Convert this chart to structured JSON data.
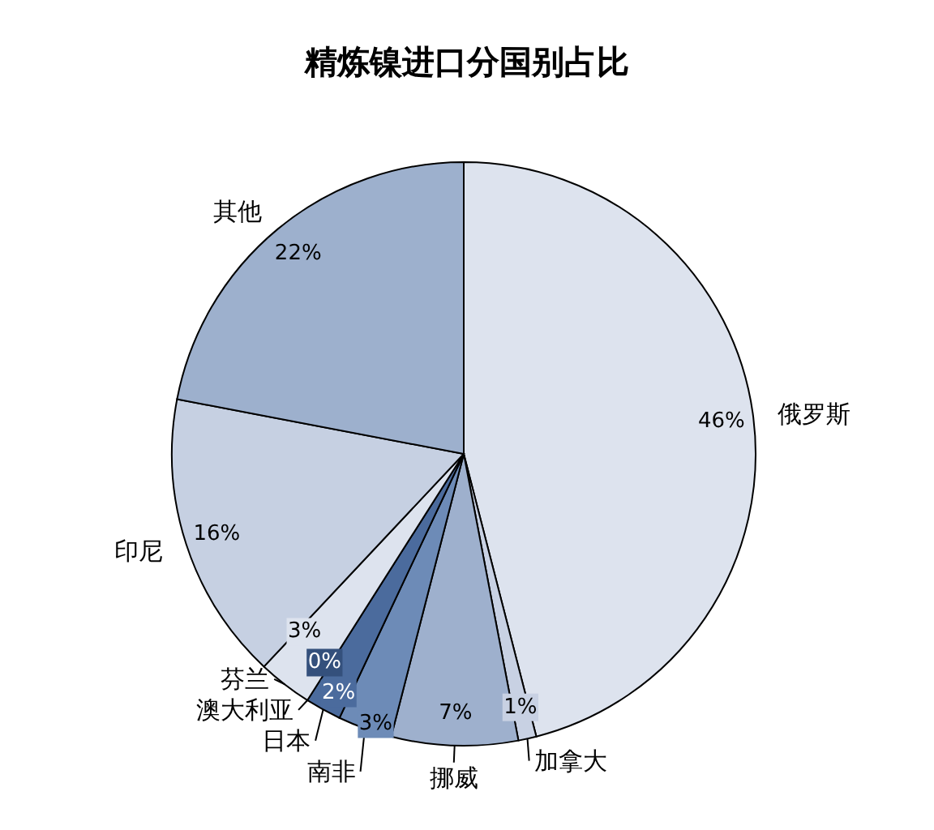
{
  "chart_data": {
    "type": "pie",
    "title": "精炼镍进口分国别占比",
    "categories": [
      "俄罗斯",
      "加拿大",
      "挪威",
      "南非",
      "日本",
      "澳大利亚",
      "芬兰",
      "印尼",
      "其他"
    ],
    "values": [
      46,
      1,
      7,
      3,
      2,
      0,
      3,
      16,
      22
    ],
    "colors": [
      "#dde3ee",
      "#c8d1e3",
      "#9eb0cd",
      "#6d8bb7",
      "#4b6b9d",
      "#34507c",
      "#dde3ee",
      "#c6d0e2",
      "#9db0cd"
    ],
    "value_labels": [
      "46%",
      "1%",
      "7%",
      "3%",
      "2%",
      "0%",
      "3%",
      "16%",
      "22%"
    ]
  }
}
